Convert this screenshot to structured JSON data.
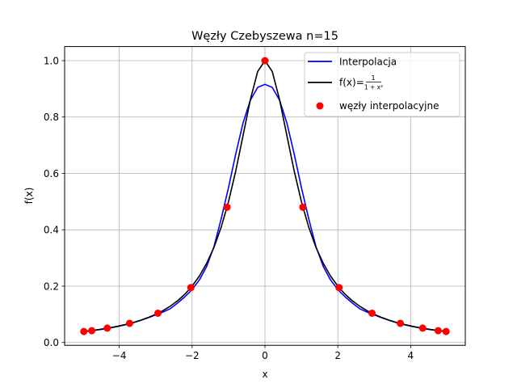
{
  "chart_data": {
    "type": "line",
    "title": "Węzły Czebyszewa n=15",
    "xlabel": "x",
    "ylabel": "f(x)",
    "xlim": [
      -5.5,
      5.5
    ],
    "ylim": [
      -0.01,
      1.05
    ],
    "grid": true,
    "legend_placement": "top-right",
    "x_ticks": [
      -4,
      -2,
      0,
      2,
      4
    ],
    "x_tick_labels": [
      "−4",
      "−2",
      "0",
      "2",
      "4"
    ],
    "y_ticks": [
      0.0,
      0.2,
      0.4,
      0.6,
      0.8,
      1.0
    ],
    "y_tick_labels": [
      "0.0",
      "0.2",
      "0.4",
      "0.6",
      "0.8",
      "1.0"
    ],
    "series": [
      {
        "name": "Interpolacja",
        "kind": "line",
        "color": "#0000ff",
        "x": [
          -5.0,
          -4.8,
          -4.6,
          -4.4,
          -4.2,
          -4.0,
          -3.8,
          -3.6,
          -3.4,
          -3.2,
          -3.0,
          -2.8,
          -2.6,
          -2.4,
          -2.2,
          -2.0,
          -1.8,
          -1.6,
          -1.4,
          -1.2,
          -1.0,
          -0.8,
          -0.6,
          -0.4,
          -0.2,
          0.0,
          0.2,
          0.4,
          0.6,
          0.8,
          1.0,
          1.2,
          1.4,
          1.6,
          1.8,
          2.0,
          2.2,
          2.4,
          2.6,
          2.8,
          3.0,
          3.2,
          3.4,
          3.6,
          3.8,
          4.0,
          4.2,
          4.4,
          4.6,
          4.8,
          5.0
        ],
        "y": [
          0.038,
          0.042,
          0.045,
          0.048,
          0.053,
          0.058,
          0.064,
          0.071,
          0.079,
          0.088,
          0.098,
          0.108,
          0.12,
          0.14,
          0.162,
          0.188,
          0.222,
          0.27,
          0.34,
          0.44,
          0.55,
          0.67,
          0.78,
          0.86,
          0.905,
          0.916,
          0.905,
          0.86,
          0.78,
          0.67,
          0.55,
          0.44,
          0.34,
          0.27,
          0.222,
          0.188,
          0.162,
          0.14,
          0.12,
          0.108,
          0.098,
          0.088,
          0.079,
          0.071,
          0.064,
          0.058,
          0.053,
          0.048,
          0.045,
          0.042,
          0.038
        ]
      },
      {
        "name": "f(x)=1/(1+x²)",
        "kind": "line",
        "color": "#000000",
        "x": [
          -5.0,
          -4.8,
          -4.6,
          -4.4,
          -4.2,
          -4.0,
          -3.8,
          -3.6,
          -3.4,
          -3.2,
          -3.0,
          -2.8,
          -2.6,
          -2.4,
          -2.2,
          -2.0,
          -1.8,
          -1.6,
          -1.4,
          -1.2,
          -1.0,
          -0.8,
          -0.6,
          -0.4,
          -0.2,
          0.0,
          0.2,
          0.4,
          0.6,
          0.8,
          1.0,
          1.2,
          1.4,
          1.6,
          1.8,
          2.0,
          2.2,
          2.4,
          2.6,
          2.8,
          3.0,
          3.2,
          3.4,
          3.6,
          3.8,
          4.0,
          4.2,
          4.4,
          4.6,
          4.8,
          5.0
        ],
        "y": [
          0.0385,
          0.0416,
          0.0451,
          0.0491,
          0.0536,
          0.0588,
          0.0648,
          0.0716,
          0.0796,
          0.089,
          0.1,
          0.1131,
          0.1289,
          0.1479,
          0.1712,
          0.2,
          0.2358,
          0.2809,
          0.3378,
          0.4098,
          0.5,
          0.6098,
          0.7353,
          0.8621,
          0.9615,
          1.0,
          0.9615,
          0.8621,
          0.7353,
          0.6098,
          0.5,
          0.4098,
          0.3378,
          0.2809,
          0.2358,
          0.2,
          0.1712,
          0.1479,
          0.1289,
          0.1131,
          0.1,
          0.089,
          0.0796,
          0.0716,
          0.0648,
          0.0588,
          0.0536,
          0.0491,
          0.0451,
          0.0416,
          0.0385
        ]
      },
      {
        "name": "węzły interpolacyjne",
        "kind": "scatter",
        "color": "#ff0000",
        "x": [
          -4.973,
          -4.755,
          -4.33,
          -3.716,
          -2.939,
          -2.033,
          -1.04,
          0.0,
          1.04,
          2.033,
          2.939,
          3.716,
          4.33,
          4.755,
          4.973
        ],
        "y": [
          0.039,
          0.042,
          0.051,
          0.068,
          0.104,
          0.195,
          0.48,
          1.0,
          0.48,
          0.195,
          0.104,
          0.068,
          0.051,
          0.042,
          0.039
        ]
      }
    ]
  }
}
